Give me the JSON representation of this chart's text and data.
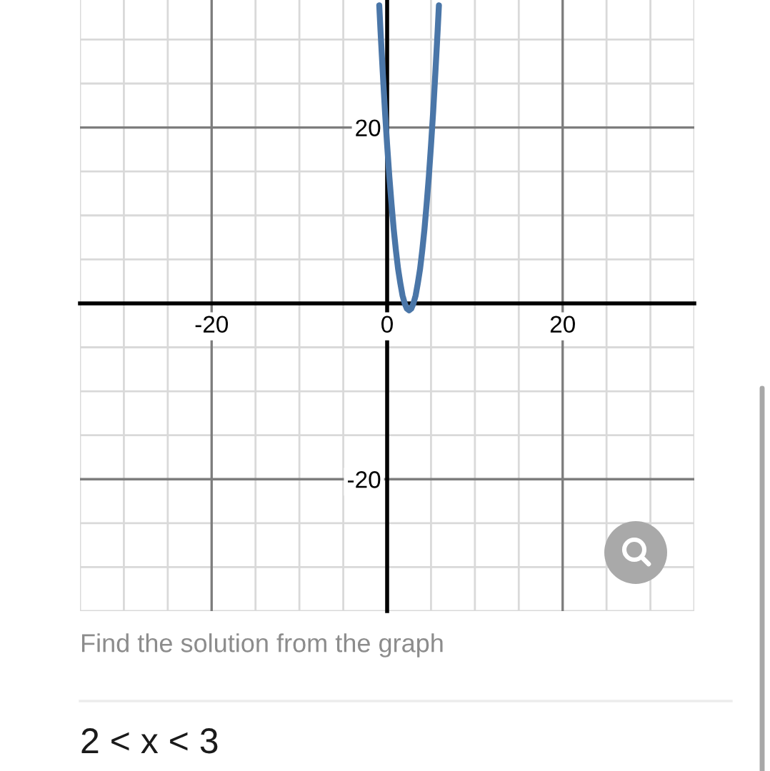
{
  "chart_data": {
    "type": "line",
    "x": [
      -0.9,
      -0.75,
      -0.5,
      -0.25,
      0,
      0.25,
      0.5,
      0.75,
      1,
      1.25,
      1.5,
      1.75,
      2,
      2.25,
      2.5,
      2.75,
      3,
      3.25,
      3.5,
      3.75,
      4,
      4.25,
      4.5,
      4.75,
      5,
      5.25,
      5.5,
      5.75,
      5.9
    ],
    "values": [
      33.9,
      30.9,
      26.3,
      21.9,
      18,
      14.4,
      11.3,
      8.4,
      6,
      3.9,
      2.3,
      0.9,
      0,
      -0.6,
      -0.8,
      -0.6,
      0,
      0.9,
      2.3,
      3.9,
      6,
      8.4,
      11.3,
      14.4,
      18,
      21.9,
      26.3,
      30.9,
      33.9
    ],
    "color": "#4a76a8",
    "line_style": "solid",
    "xlim": [
      -35,
      35
    ],
    "ylim": [
      -35,
      34.5
    ],
    "xticks": [
      {
        "value": -35,
        "label": null
      },
      {
        "value": -30,
        "label": null
      },
      {
        "value": -25,
        "label": null
      },
      -20,
      {
        "value": -15,
        "label": null
      },
      {
        "value": -10,
        "label": null
      },
      {
        "value": -5,
        "label": null
      },
      0,
      {
        "value": 5,
        "label": null
      },
      {
        "value": 10,
        "label": null
      },
      {
        "value": 15,
        "label": null
      },
      20,
      {
        "value": 25,
        "label": null
      },
      {
        "value": 30,
        "label": null
      },
      {
        "value": 35,
        "label": null
      }
    ],
    "yticks": [
      {
        "value": -35,
        "label": null
      },
      {
        "value": -30,
        "label": null
      },
      {
        "value": -25,
        "label": null
      },
      -20,
      {
        "value": -15,
        "label": null
      },
      {
        "value": -10,
        "label": null
      },
      {
        "value": -5,
        "label": null
      },
      {
        "value": 0,
        "label": null
      },
      {
        "value": 5,
        "label": null
      },
      {
        "value": 10,
        "label": null
      },
      {
        "value": 15,
        "label": null
      },
      20,
      {
        "value": 25,
        "label": null
      },
      {
        "value": 30,
        "label": null
      }
    ],
    "grid": true,
    "annotations": [
      "Find the solution from the graph",
      "2 < x < 3"
    ]
  }
}
